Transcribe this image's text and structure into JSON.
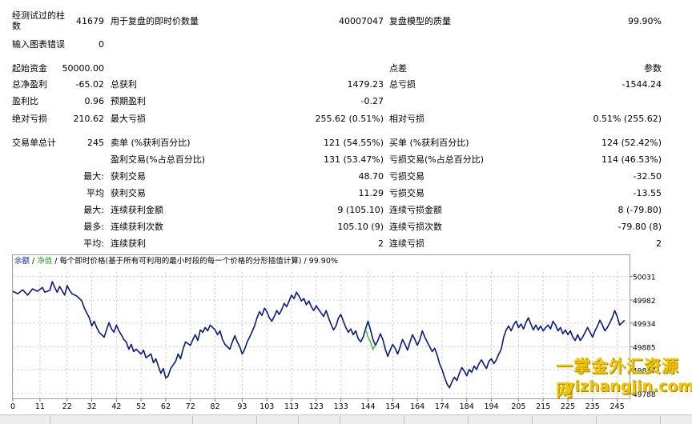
{
  "stats": {
    "bars_label": "经测试过的柱\n数",
    "bars_value": "41679",
    "ticks_label": "用于复盘的即时价数量",
    "ticks_value": "40007047",
    "quality_label": "复盘模型的质量",
    "quality_value": "99.90%",
    "errors_label": "输入图表错误",
    "errors_value": "0",
    "deposit_label": "起始资金",
    "deposit_value": "50000.00",
    "spread_label": "点差",
    "spread_value": "参数",
    "net_profit_label": "总净盈利",
    "net_profit_value": "-65.02",
    "gross_profit_label": "总获利",
    "gross_profit_value": "1479.23",
    "gross_loss_label": "总亏损",
    "gross_loss_value": "-1544.24",
    "profit_factor_label": "盈利比",
    "profit_factor_value": "0.96",
    "expected_payoff_label": "预期盈利",
    "expected_payoff_value": "-0.27",
    "abs_dd_label": "绝对亏损",
    "abs_dd_value": "210.62",
    "max_dd_label": "最大亏损",
    "max_dd_value": "255.62 (0.51%)",
    "rel_dd_label": "相对亏损",
    "rel_dd_value": "0.51% (255.62)",
    "total_trades_label": "交易单总计",
    "total_trades_value": "245",
    "short_label": "卖单 (%获利百分比)",
    "short_value": "121 (54.55%)",
    "long_label": "买单 (%获利百分比)",
    "long_value": "124 (52.42%)",
    "profit_trades_label": "盈利交易(%占总百分比)",
    "profit_trades_value": "131 (53.47%)",
    "loss_trades_label": "亏损交易(%占总百分比)",
    "loss_trades_value": "114 (46.53%)",
    "max1_prefix": "最大:",
    "largest_profit_label": "获利交易",
    "largest_profit_value": "48.70",
    "largest_loss_label": "亏损交易",
    "largest_loss_value": "-32.50",
    "avg_prefix": "平均",
    "avg_profit_label": "获利交易",
    "avg_profit_value": "11.29",
    "avg_loss_label": "亏损交易",
    "avg_loss_value": "-13.55",
    "max2_prefix": "最大:",
    "max_cons_wins_label": "连续获利金额",
    "max_cons_wins_value": "9 (105.10)",
    "max_cons_losses_label": "连续亏损金额",
    "max_cons_losses_value": "8 (-79.80)",
    "most_prefix": "最多:",
    "max_cons_profit_label": "连续获利次数",
    "max_cons_profit_value": "105.10 (9)",
    "max_cons_loss_label": "连续亏损次数",
    "max_cons_loss_value": "-79.80 (8)",
    "avg2_prefix": "平均:",
    "avg_cons_wins_label": "连续获利",
    "avg_cons_wins_value": "2",
    "avg_cons_losses_label": "连续亏损",
    "avg_cons_losses_value": "2"
  },
  "chart_legend": {
    "balance": "余额",
    "sep1": " / ",
    "equity": "净值",
    "rest": " / 每个即时价格(基于所有可利用的最小时段的每一个价格的分形插值计算) / 99.90%"
  },
  "colors": {
    "balance": "#0a1a7a",
    "equity": "#22aa22",
    "legend_balance": "#1a1aa0",
    "legend_equity": "#22aa22",
    "grid": "#c8c8c8"
  },
  "chart_data": {
    "type": "line",
    "xlim": [
      0,
      250
    ],
    "ylim": [
      49778,
      50040
    ],
    "x_ticks": [
      "0",
      "11",
      "22",
      "32",
      "42",
      "52",
      "62",
      "72",
      "82",
      "93",
      "103",
      "113",
      "123",
      "133",
      "144",
      "154",
      "164",
      "174",
      "184",
      "194",
      "205",
      "215",
      "225",
      "235",
      "245"
    ],
    "y_ticks": [
      "50031",
      "49982",
      "49934",
      "49885",
      "49837",
      "49788"
    ],
    "series": [
      {
        "values": [
          [
            0,
            50000
          ],
          [
            2,
            49995
          ],
          [
            4,
            50003
          ],
          [
            6,
            49992
          ],
          [
            8,
            50005
          ],
          [
            10,
            50000
          ],
          [
            12,
            50008
          ],
          [
            13,
            49998
          ],
          [
            15,
            50002
          ],
          [
            16,
            50020
          ],
          [
            17,
            50008
          ],
          [
            18,
            49998
          ],
          [
            19,
            50010
          ],
          [
            21,
            49992
          ],
          [
            22,
            50012
          ],
          [
            23,
            50002
          ],
          [
            24,
            49995
          ],
          [
            26,
            49990
          ],
          [
            28,
            49980
          ],
          [
            29,
            49965
          ],
          [
            31,
            49945
          ],
          [
            32,
            49928
          ],
          [
            33,
            49938
          ],
          [
            34,
            49925
          ],
          [
            35,
            49915
          ],
          [
            37,
            49905
          ],
          [
            38,
            49920
          ],
          [
            39,
            49935
          ],
          [
            40,
            49922
          ],
          [
            41,
            49915
          ],
          [
            42,
            49930
          ],
          [
            43,
            49918
          ],
          [
            44,
            49910
          ],
          [
            45,
            49900
          ],
          [
            46,
            49895
          ],
          [
            47,
            49880
          ],
          [
            48,
            49890
          ],
          [
            49,
            49875
          ],
          [
            50,
            49880
          ],
          [
            52,
            49870
          ],
          [
            53,
            49878
          ],
          [
            54,
            49862
          ],
          [
            56,
            49870
          ],
          [
            57,
            49852
          ],
          [
            58,
            49860
          ],
          [
            59,
            49845
          ],
          [
            60,
            49830
          ],
          [
            61,
            49840
          ],
          [
            62,
            49820
          ],
          [
            63,
            49825
          ],
          [
            64,
            49840
          ],
          [
            66,
            49855
          ],
          [
            67,
            49870
          ],
          [
            68,
            49860
          ],
          [
            69,
            49880
          ],
          [
            70,
            49895
          ],
          [
            72,
            49888
          ],
          [
            73,
            49900
          ],
          [
            74,
            49910
          ],
          [
            75,
            49898
          ],
          [
            76,
            49920
          ],
          [
            77,
            49915
          ],
          [
            78,
            49925
          ],
          [
            79,
            49918
          ],
          [
            80,
            49930
          ],
          [
            82,
            49920
          ],
          [
            83,
            49910
          ],
          [
            84,
            49918
          ],
          [
            85,
            49900
          ],
          [
            86,
            49890
          ],
          [
            88,
            49880
          ],
          [
            89,
            49895
          ],
          [
            90,
            49908
          ],
          [
            91,
            49895
          ],
          [
            92,
            49885
          ],
          [
            93,
            49870
          ],
          [
            94,
            49880
          ],
          [
            95,
            49895
          ],
          [
            96,
            49905
          ],
          [
            98,
            49928
          ],
          [
            99,
            49945
          ],
          [
            100,
            49958
          ],
          [
            101,
            49950
          ],
          [
            102,
            49965
          ],
          [
            103,
            49958
          ],
          [
            104,
            49945
          ],
          [
            105,
            49938
          ],
          [
            106,
            49948
          ],
          [
            107,
            49960
          ],
          [
            108,
            49952
          ],
          [
            109,
            49962
          ],
          [
            110,
            49975
          ],
          [
            111,
            49968
          ],
          [
            112,
            49980
          ],
          [
            113,
            49992
          ],
          [
            114,
            49985
          ],
          [
            115,
            49998
          ],
          [
            116,
            49990
          ],
          [
            117,
            49980
          ],
          [
            118,
            49985
          ],
          [
            119,
            49972
          ],
          [
            120,
            49980
          ],
          [
            121,
            49968
          ],
          [
            122,
            49960
          ],
          [
            123,
            49970
          ],
          [
            124,
            49962
          ],
          [
            125,
            49955
          ],
          [
            126,
            49948
          ],
          [
            127,
            49960
          ],
          [
            128,
            49945
          ],
          [
            129,
            49932
          ],
          [
            130,
            49920
          ],
          [
            131,
            49928
          ],
          [
            132,
            49945
          ],
          [
            133,
            49952
          ],
          [
            134,
            49938
          ],
          [
            135,
            49925
          ],
          [
            136,
            49915
          ],
          [
            137,
            49922
          ],
          [
            138,
            49910
          ],
          [
            139,
            49918
          ],
          [
            140,
            49902
          ],
          [
            141,
            49895
          ],
          [
            142,
            49905
          ],
          [
            143,
            49922
          ],
          [
            144,
            49938
          ],
          [
            145,
            49920
          ],
          [
            146,
            49900
          ],
          [
            147,
            49888
          ],
          [
            148,
            49898
          ],
          [
            149,
            49912
          ],
          [
            150,
            49900
          ],
          [
            151,
            49880
          ],
          [
            152,
            49865
          ],
          [
            153,
            49878
          ],
          [
            154,
            49890
          ],
          [
            155,
            49882
          ],
          [
            156,
            49870
          ],
          [
            157,
            49885
          ],
          [
            158,
            49900
          ],
          [
            159,
            49890
          ],
          [
            160,
            49878
          ],
          [
            161,
            49895
          ],
          [
            162,
            49910
          ],
          [
            163,
            49900
          ],
          [
            164,
            49888
          ],
          [
            165,
            49900
          ],
          [
            166,
            49918
          ],
          [
            167,
            49905
          ],
          [
            168,
            49895
          ],
          [
            169,
            49885
          ],
          [
            170,
            49875
          ],
          [
            171,
            49882
          ],
          [
            172,
            49868
          ],
          [
            173,
            49850
          ],
          [
            174,
            49838
          ],
          [
            175,
            49822
          ],
          [
            176,
            49808
          ],
          [
            177,
            49800
          ],
          [
            178,
            49812
          ],
          [
            179,
            49822
          ],
          [
            180,
            49815
          ],
          [
            181,
            49830
          ],
          [
            182,
            49842
          ],
          [
            183,
            49835
          ],
          [
            184,
            49825
          ],
          [
            185,
            49838
          ],
          [
            186,
            49832
          ],
          [
            187,
            49845
          ],
          [
            188,
            49838
          ],
          [
            189,
            49850
          ],
          [
            190,
            49858
          ],
          [
            191,
            49848
          ],
          [
            192,
            49840
          ],
          [
            193,
            49855
          ],
          [
            194,
            49860
          ],
          [
            195,
            49850
          ],
          [
            196,
            49858
          ],
          [
            197,
            49870
          ],
          [
            198,
            49880
          ],
          [
            199,
            49905
          ],
          [
            200,
            49920
          ],
          [
            201,
            49928
          ],
          [
            202,
            49918
          ],
          [
            203,
            49930
          ],
          [
            204,
            49938
          ],
          [
            205,
            49925
          ],
          [
            206,
            49932
          ],
          [
            207,
            49922
          ],
          [
            208,
            49935
          ],
          [
            209,
            49945
          ],
          [
            210,
            49932
          ],
          [
            211,
            49920
          ],
          [
            212,
            49930
          ],
          [
            213,
            49920
          ],
          [
            214,
            49928
          ],
          [
            215,
            49918
          ],
          [
            216,
            49925
          ],
          [
            217,
            49930
          ],
          [
            218,
            49922
          ],
          [
            219,
            49938
          ],
          [
            220,
            49930
          ],
          [
            221,
            49918
          ],
          [
            222,
            49925
          ],
          [
            223,
            49912
          ],
          [
            224,
            49920
          ],
          [
            225,
            49910
          ],
          [
            226,
            49918
          ],
          [
            227,
            49905
          ],
          [
            228,
            49898
          ],
          [
            229,
            49910
          ],
          [
            230,
            49898
          ],
          [
            231,
            49905
          ],
          [
            232,
            49915
          ],
          [
            233,
            49925
          ],
          [
            234,
            49915
          ],
          [
            235,
            49905
          ],
          [
            236,
            49918
          ],
          [
            237,
            49928
          ],
          [
            238,
            49940
          ],
          [
            239,
            49930
          ],
          [
            240,
            49918
          ],
          [
            241,
            49925
          ],
          [
            242,
            49935
          ],
          [
            243,
            49945
          ],
          [
            244,
            49960
          ],
          [
            245,
            49948
          ],
          [
            246,
            49930
          ],
          [
            247,
            49935
          ],
          [
            248,
            49940
          ]
        ]
      },
      {
        "values": [
          [
            143,
            49922
          ],
          [
            144,
            49905
          ],
          [
            145,
            49895
          ],
          [
            146,
            49880
          ],
          [
            147,
            49888
          ]
        ]
      }
    ]
  },
  "watermark": {
    "line1": "一掌金外汇资源网",
    "line2": "yizhangjin.com"
  }
}
